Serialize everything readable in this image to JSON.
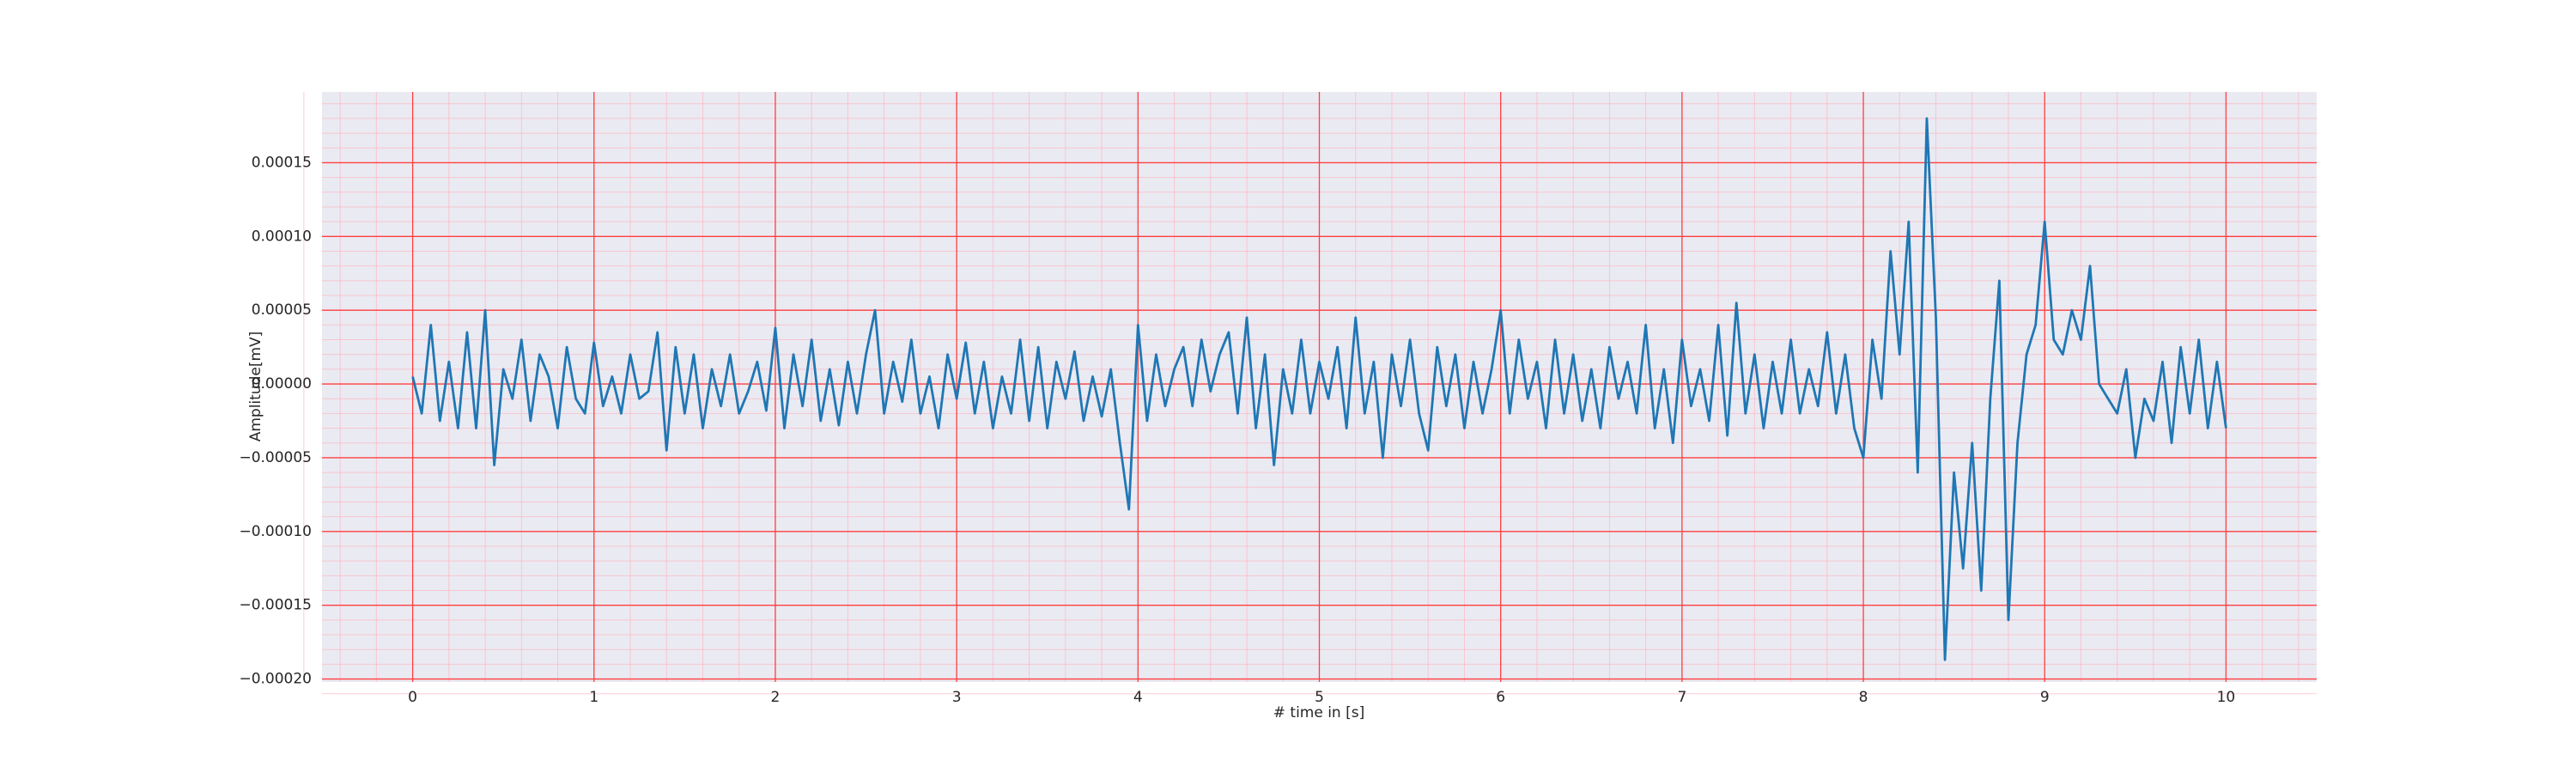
{
  "chart_data": {
    "type": "line",
    "xlabel": "# time in [s]",
    "ylabel": "Amplitude[mV]",
    "color": "#1f77b4",
    "grid": true,
    "minor_grid": true,
    "xlim": [
      -0.5,
      10.5
    ],
    "xticks": [
      0,
      1,
      2,
      3,
      4,
      5,
      6,
      7,
      8,
      9,
      10
    ],
    "ylim": [
      -0.000202,
      0.000198
    ],
    "yticks": [
      {
        "value": -0.0002,
        "label": "−0.00020"
      },
      {
        "value": -0.00015,
        "label": "−0.00015"
      },
      {
        "value": -0.0001,
        "label": "−0.00010"
      },
      {
        "value": -5e-05,
        "label": "−0.00005"
      },
      {
        "value": 0,
        "label": "0.00000"
      },
      {
        "value": 5e-05,
        "label": "0.00005"
      },
      {
        "value": 0.0001,
        "label": "0.00010"
      },
      {
        "value": 0.00015,
        "label": "0.00015"
      }
    ],
    "x": [
      0,
      0.05,
      0.1,
      0.15,
      0.2,
      0.25,
      0.3,
      0.35,
      0.4,
      0.45,
      0.5,
      0.55,
      0.6,
      0.65,
      0.7,
      0.75,
      0.8,
      0.85,
      0.9,
      0.95,
      1,
      1.05,
      1.1,
      1.15,
      1.2,
      1.25,
      1.3,
      1.35,
      1.4,
      1.45,
      1.5,
      1.55,
      1.6,
      1.65,
      1.7,
      1.75,
      1.8,
      1.85,
      1.9,
      1.95,
      2,
      2.05,
      2.1,
      2.15,
      2.2,
      2.25,
      2.3,
      2.35,
      2.4,
      2.45,
      2.5,
      2.55,
      2.6,
      2.65,
      2.7,
      2.75,
      2.8,
      2.85,
      2.9,
      2.95,
      3,
      3.05,
      3.1,
      3.15,
      3.2,
      3.25,
      3.3,
      3.35,
      3.4,
      3.45,
      3.5,
      3.55,
      3.6,
      3.65,
      3.7,
      3.75,
      3.8,
      3.85,
      3.9,
      3.95,
      4,
      4.05,
      4.1,
      4.15,
      4.2,
      4.25,
      4.3,
      4.35,
      4.4,
      4.45,
      4.5,
      4.55,
      4.6,
      4.65,
      4.7,
      4.75,
      4.8,
      4.85,
      4.9,
      4.95,
      5,
      5.05,
      5.1,
      5.15,
      5.2,
      5.25,
      5.3,
      5.35,
      5.4,
      5.45,
      5.5,
      5.55,
      5.6,
      5.65,
      5.7,
      5.75,
      5.8,
      5.85,
      5.9,
      5.95,
      6,
      6.05,
      6.1,
      6.15,
      6.2,
      6.25,
      6.3,
      6.35,
      6.4,
      6.45,
      6.5,
      6.55,
      6.6,
      6.65,
      6.7,
      6.75,
      6.8,
      6.85,
      6.9,
      6.95,
      7,
      7.05,
      7.1,
      7.15,
      7.2,
      7.25,
      7.3,
      7.35,
      7.4,
      7.45,
      7.5,
      7.55,
      7.6,
      7.65,
      7.7,
      7.75,
      7.8,
      7.85,
      7.9,
      7.95,
      8,
      8.05,
      8.1,
      8.15,
      8.2,
      8.25,
      8.3,
      8.35,
      8.4,
      8.45,
      8.5,
      8.55,
      8.6,
      8.65,
      8.7,
      8.75,
      8.8,
      8.85,
      8.9,
      8.95,
      9,
      9.05,
      9.1,
      9.15,
      9.2,
      9.25,
      9.3,
      9.35,
      9.4,
      9.45,
      9.5,
      9.55,
      9.6,
      9.65,
      9.7,
      9.75,
      9.8,
      9.85,
      9.9,
      9.95,
      10
    ],
    "values": [
      5e-06,
      -2e-05,
      4e-05,
      -2.5e-05,
      1.5e-05,
      -3e-05,
      3.5e-05,
      -3e-05,
      5e-05,
      -5.5e-05,
      1e-05,
      -1e-05,
      3e-05,
      -2.5e-05,
      2e-05,
      5e-06,
      -3e-05,
      2.5e-05,
      -1e-05,
      -2e-05,
      2.8e-05,
      -1.5e-05,
      5e-06,
      -2e-05,
      2e-05,
      -1e-05,
      -5e-06,
      3.5e-05,
      -4.5e-05,
      2.5e-05,
      -2e-05,
      2e-05,
      -3e-05,
      1e-05,
      -1.5e-05,
      2e-05,
      -2e-05,
      -5e-06,
      1.5e-05,
      -1.8e-05,
      3.8e-05,
      -3e-05,
      2e-05,
      -1.5e-05,
      3e-05,
      -2.5e-05,
      1e-05,
      -2.8e-05,
      1.5e-05,
      -2e-05,
      2e-05,
      5e-05,
      -2e-05,
      1.5e-05,
      -1.2e-05,
      3e-05,
      -2e-05,
      5e-06,
      -3e-05,
      2e-05,
      -1e-05,
      2.8e-05,
      -2e-05,
      1.5e-05,
      -3e-05,
      5e-06,
      -2e-05,
      3e-05,
      -2.5e-05,
      2.5e-05,
      -3e-05,
      1.5e-05,
      -1e-05,
      2.2e-05,
      -2.5e-05,
      5e-06,
      -2.2e-05,
      1e-05,
      -4e-05,
      -8.5e-05,
      4e-05,
      -2.5e-05,
      2e-05,
      -1.5e-05,
      1e-05,
      2.5e-05,
      -1.5e-05,
      3e-05,
      -5e-06,
      2e-05,
      3.5e-05,
      -2e-05,
      4.5e-05,
      -3e-05,
      2e-05,
      -5.5e-05,
      1e-05,
      -2e-05,
      3e-05,
      -2e-05,
      1.5e-05,
      -1e-05,
      2.5e-05,
      -3e-05,
      4.5e-05,
      -2e-05,
      1.5e-05,
      -5e-05,
      2e-05,
      -1.5e-05,
      3e-05,
      -2e-05,
      -4.5e-05,
      2.5e-05,
      -1.5e-05,
      2e-05,
      -3e-05,
      1.5e-05,
      -2e-05,
      1e-05,
      5e-05,
      -2e-05,
      3e-05,
      -1e-05,
      1.5e-05,
      -3e-05,
      3e-05,
      -2e-05,
      2e-05,
      -2.5e-05,
      1e-05,
      -3e-05,
      2.5e-05,
      -1e-05,
      1.5e-05,
      -2e-05,
      4e-05,
      -3e-05,
      1e-05,
      -4e-05,
      3e-05,
      -1.5e-05,
      1e-05,
      -2.5e-05,
      4e-05,
      -3.5e-05,
      5.5e-05,
      -2e-05,
      2e-05,
      -3e-05,
      1.5e-05,
      -2e-05,
      3e-05,
      -2e-05,
      1e-05,
      -1.5e-05,
      3.5e-05,
      -2e-05,
      2e-05,
      -3e-05,
      -5e-05,
      3e-05,
      -1e-05,
      9e-05,
      2e-05,
      0.00011,
      -6e-05,
      0.00018,
      4.5e-05,
      -0.000187,
      -6e-05,
      -0.000125,
      -4e-05,
      -0.00014,
      -1e-05,
      7e-05,
      -0.00016,
      -4e-05,
      2e-05,
      4e-05,
      0.00011,
      3e-05,
      2e-05,
      5e-05,
      3e-05,
      8e-05,
      0,
      -1e-05,
      -2e-05,
      1e-05,
      -5e-05,
      -1e-05,
      -2.5e-05,
      1.5e-05,
      -4e-05,
      2.5e-05,
      -2e-05,
      3e-05,
      -3e-05,
      1.5e-05,
      -3e-05
    ]
  }
}
